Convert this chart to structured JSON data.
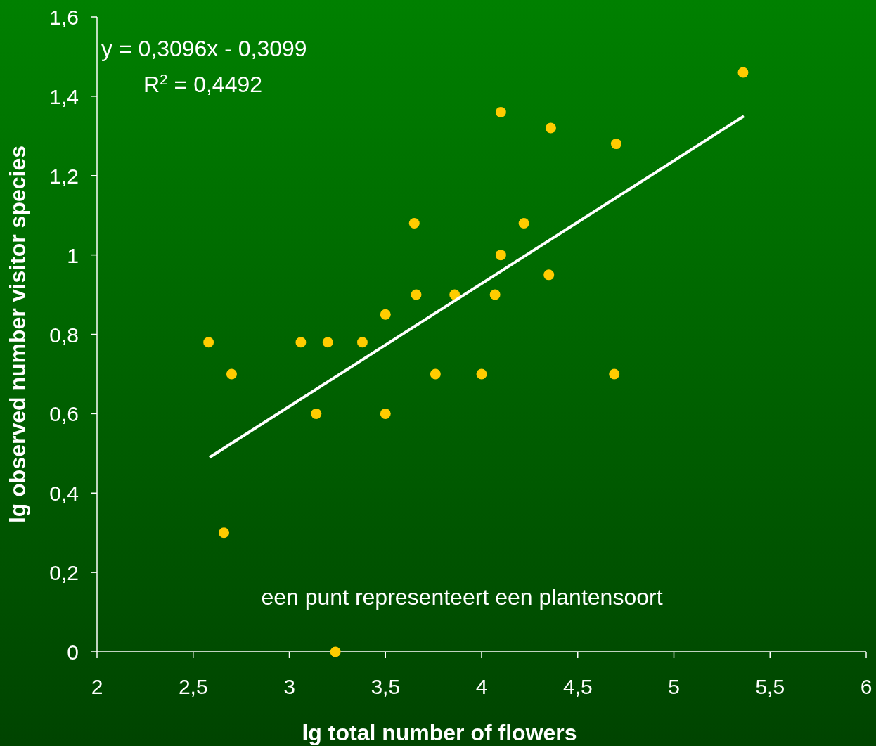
{
  "chart_data": {
    "type": "scatter",
    "xlabel": "lg total number of flowers",
    "ylabel": "lg observed number visitor species",
    "xlim": [
      2,
      6
    ],
    "ylim": [
      0,
      1.6
    ],
    "xticks": [
      2,
      {
        "value": 2.5,
        "label": "2,5"
      },
      3,
      {
        "value": 3.5,
        "label": "3,5"
      },
      4,
      {
        "value": 4.5,
        "label": "4,5"
      },
      5,
      {
        "value": 5.5,
        "label": "5,5"
      },
      6
    ],
    "yticks": [
      0,
      {
        "value": 0.2,
        "label": "0,2"
      },
      {
        "value": 0.4,
        "label": "0,4"
      },
      {
        "value": 0.6,
        "label": "0,6"
      },
      {
        "value": 0.8,
        "label": "0,8"
      },
      1,
      {
        "value": 1.2,
        "label": "1,2"
      },
      {
        "value": 1.4,
        "label": "1,4"
      },
      {
        "value": 1.6,
        "label": "1,6"
      }
    ],
    "grid": false,
    "annotations": [
      "y = 0,3096x - 0,3099",
      "R$^{2}$ = 0,4492",
      "een punt representeert een plantensoort"
    ],
    "series": [
      {
        "color": "#ffcc00",
        "marker": "circle",
        "x": [
          2.58,
          2.7,
          2.66,
          3.06,
          3.2,
          3.14,
          3.24,
          3.38,
          3.5,
          3.5,
          3.65,
          3.66,
          3.76,
          3.86,
          4.0,
          4.07,
          4.1,
          4.1,
          4.22,
          4.35,
          4.36,
          4.7,
          4.69,
          5.36
        ],
        "values": [
          0.78,
          0.7,
          0.3,
          0.78,
          0.78,
          0.6,
          0.0,
          0.78,
          0.85,
          0.6,
          1.08,
          0.9,
          0.7,
          0.9,
          0.7,
          0.9,
          1.0,
          1.36,
          1.08,
          0.95,
          1.32,
          1.28,
          0.7,
          1.46
        ]
      },
      {
        "type": "line",
        "color": "#ffffff",
        "line_style": "solid",
        "marker": "none",
        "x": [
          2.585,
          5.364
        ],
        "values": [
          0.49,
          1.35
        ]
      }
    ]
  }
}
